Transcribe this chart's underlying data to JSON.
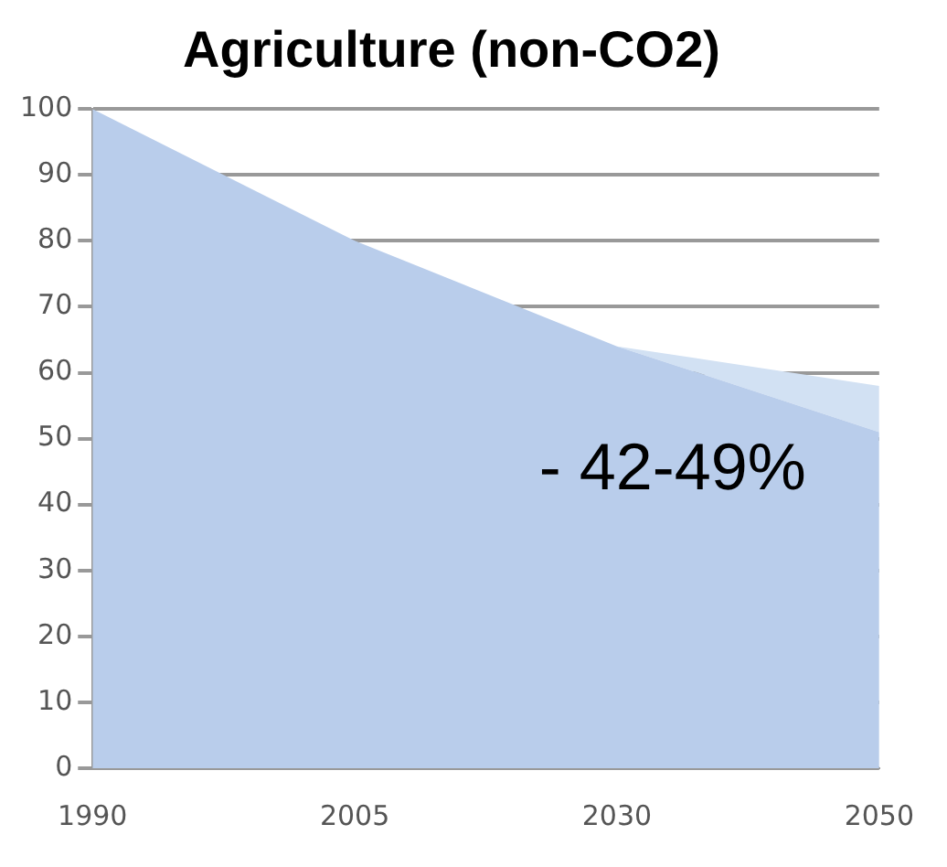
{
  "chart_data": {
    "type": "area",
    "title": "Agriculture (non-CO2)",
    "categories": [
      "1990",
      "2005",
      "2030",
      "2050"
    ],
    "series": [
      {
        "color": "#b9cdeb",
        "values": [
          100,
          80,
          64,
          51
        ]
      },
      {
        "color": "#d2e1f3",
        "values": [
          0,
          0,
          0,
          7
        ]
      }
    ],
    "stacked": true,
    "ylim": [
      0,
      100
    ],
    "yticks": [
      0,
      10,
      20,
      30,
      40,
      50,
      60,
      70,
      80,
      90,
      100
    ],
    "grid": "y",
    "legend": false,
    "annotations": [
      "- 42-49%"
    ]
  }
}
